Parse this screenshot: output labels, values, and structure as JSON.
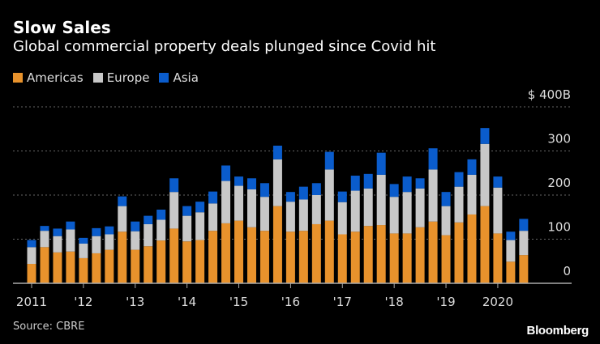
{
  "title": "Slow Sales",
  "subtitle": "Global commercial property deals plunged since Covid hit",
  "source": "Source: CBRE",
  "logo": "Bloomberg",
  "chart_data": {
    "type": "bar",
    "stacked": true,
    "title": "Slow Sales",
    "subtitle": "Global commercial property deals plunged since Covid hit",
    "ylabel": "$B",
    "ylim": [
      0,
      400
    ],
    "yticks": [
      {
        "v": 0,
        "label": "0"
      },
      {
        "v": 100,
        "label": "100"
      },
      {
        "v": 200,
        "label": "200"
      },
      {
        "v": 300,
        "label": "300"
      },
      {
        "v": 400,
        "label": "$ 400B"
      }
    ],
    "xticks": [
      {
        "i": 0,
        "label": "2011"
      },
      {
        "i": 4,
        "label": "'12"
      },
      {
        "i": 8,
        "label": "'13"
      },
      {
        "i": 12,
        "label": "'14"
      },
      {
        "i": 16,
        "label": "'15"
      },
      {
        "i": 20,
        "label": "'16"
      },
      {
        "i": 24,
        "label": "'17"
      },
      {
        "i": 28,
        "label": "'18"
      },
      {
        "i": 32,
        "label": "'19"
      },
      {
        "i": 36,
        "label": "2020"
      }
    ],
    "categories": [
      "2011 Q1",
      "2011 Q2",
      "2011 Q3",
      "2011 Q4",
      "2012 Q1",
      "2012 Q2",
      "2012 Q3",
      "2012 Q4",
      "2013 Q1",
      "2013 Q2",
      "2013 Q3",
      "2013 Q4",
      "2014 Q1",
      "2014 Q2",
      "2014 Q3",
      "2014 Q4",
      "2015 Q1",
      "2015 Q2",
      "2015 Q3",
      "2015 Q4",
      "2016 Q1",
      "2016 Q2",
      "2016 Q3",
      "2016 Q4",
      "2017 Q1",
      "2017 Q2",
      "2017 Q3",
      "2017 Q4",
      "2018 Q1",
      "2018 Q2",
      "2018 Q3",
      "2018 Q4",
      "2019 Q1",
      "2019 Q2",
      "2019 Q3",
      "2019 Q4",
      "2020 Q1",
      "2020 Q2",
      "2020 Q3"
    ],
    "series": [
      {
        "name": "Americas",
        "color": "#e8922c",
        "values": [
          44,
          82,
          70,
          72,
          57,
          68,
          76,
          117,
          76,
          84,
          97,
          124,
          95,
          98,
          119,
          136,
          142,
          127,
          119,
          175,
          117,
          119,
          134,
          142,
          111,
          117,
          130,
          132,
          113,
          113,
          127,
          140,
          109,
          138,
          156,
          175,
          113,
          49,
          64
        ]
      },
      {
        "name": "Europe",
        "color": "#c8c8c8",
        "values": [
          38,
          37,
          37,
          50,
          33,
          39,
          35,
          58,
          42,
          50,
          47,
          83,
          58,
          63,
          62,
          96,
          79,
          86,
          77,
          106,
          68,
          71,
          66,
          116,
          73,
          93,
          85,
          114,
          83,
          94,
          88,
          118,
          66,
          81,
          90,
          141,
          104,
          49,
          55
        ]
      },
      {
        "name": "Asia",
        "color": "#0a5ccc",
        "values": [
          16,
          11,
          17,
          18,
          13,
          18,
          18,
          22,
          22,
          19,
          23,
          31,
          22,
          24,
          27,
          35,
          21,
          25,
          31,
          31,
          22,
          29,
          27,
          40,
          24,
          34,
          33,
          50,
          29,
          35,
          23,
          48,
          32,
          33,
          35,
          36,
          25,
          19,
          27
        ]
      }
    ],
    "grid": true,
    "legend": "top-left"
  }
}
